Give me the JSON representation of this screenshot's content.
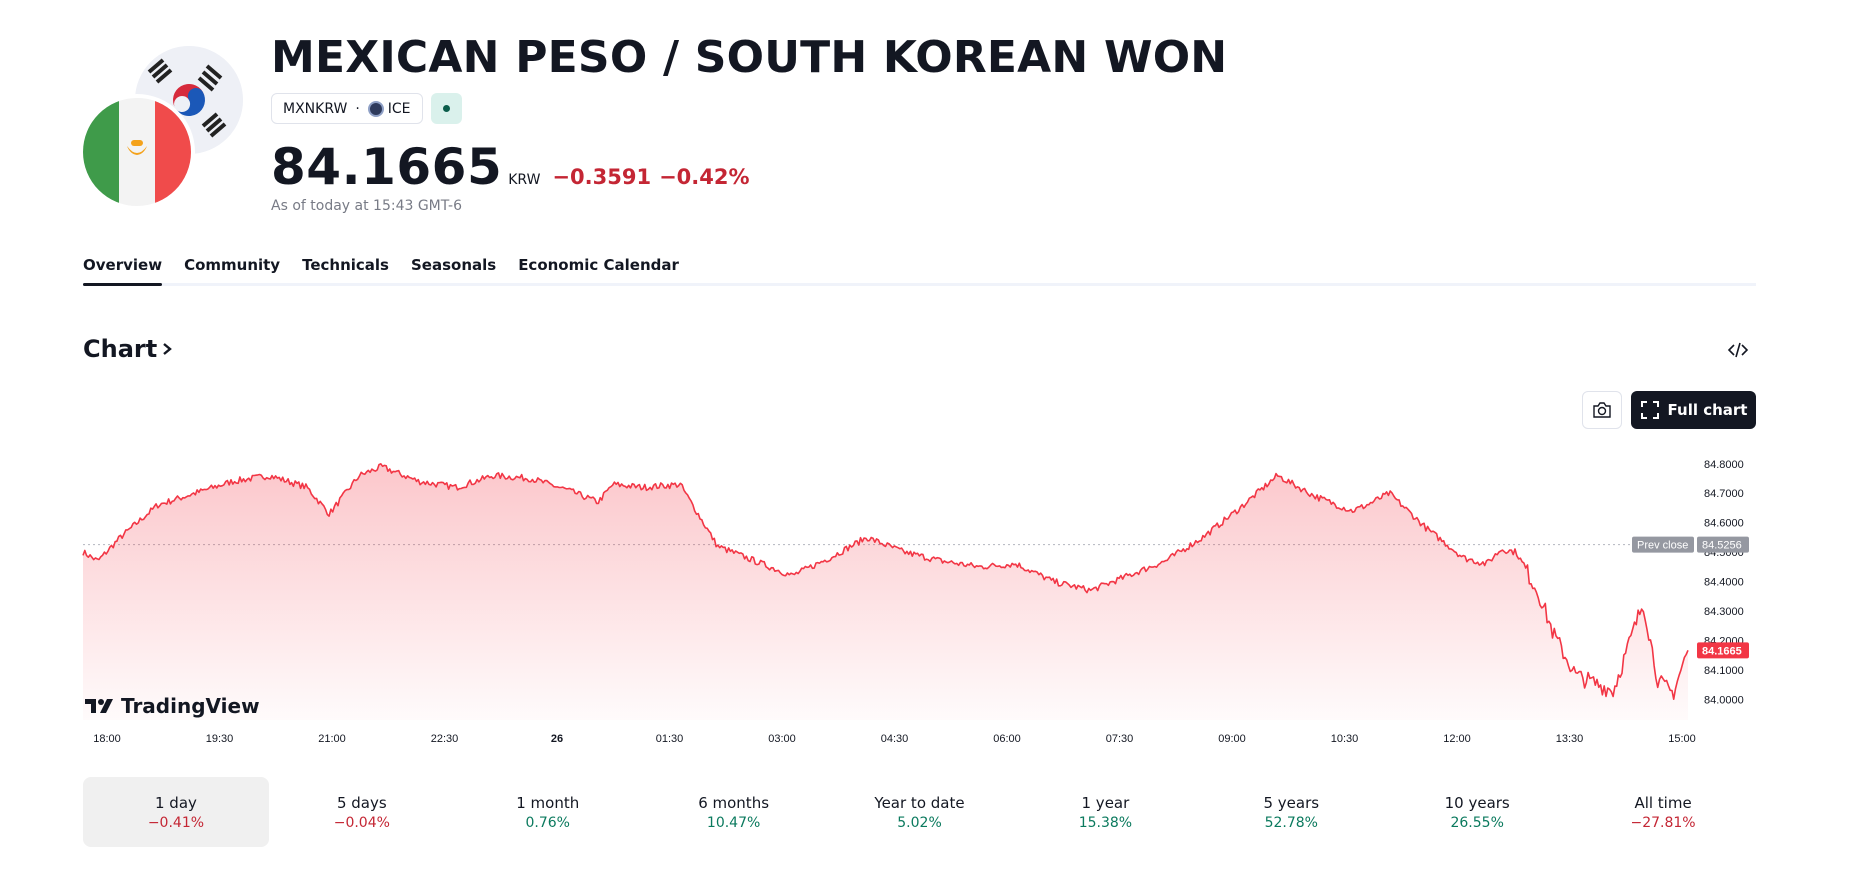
{
  "header": {
    "title": "MEXICAN PESO / SOUTH KOREAN WON",
    "symbol": "MXNKRW",
    "separator": "·",
    "exchange": "ICE",
    "price": "84.1665",
    "currency": "KRW",
    "change": "−0.3591",
    "change_pct": "−0.42%",
    "as_of": "As of today at 15:43 GMT-6"
  },
  "tabs": [
    "Overview",
    "Community",
    "Technicals",
    "Seasonals",
    "Economic Calendar"
  ],
  "chart_section": {
    "title": "Chart",
    "full_chart_label": "Full chart",
    "brand": "TradingView"
  },
  "colors": {
    "accent_red": "#f23645",
    "text_negative": "#c42634",
    "text_positive": "#0b7a5e",
    "dark": "#131722"
  },
  "chart_data": {
    "type": "area",
    "title": "",
    "xlabel": "",
    "ylabel": "",
    "x_ticks": [
      "18:00",
      "19:30",
      "21:00",
      "22:30",
      "26",
      "01:30",
      "03:00",
      "04:30",
      "06:00",
      "07:30",
      "09:00",
      "10:30",
      "12:00",
      "13:30",
      "15:00"
    ],
    "y_ticks": [
      "84.8000",
      "84.7000",
      "84.6000",
      "84.5000",
      "84.4000",
      "84.3000",
      "84.2000",
      "84.1000",
      "84.0000"
    ],
    "ylim": [
      83.93,
      84.84
    ],
    "x_hours": [
      0,
      0.2,
      0.5,
      1.0,
      1.5,
      2.0,
      2.5,
      3.0,
      3.3,
      3.7,
      4.0,
      4.5,
      5.0,
      5.5,
      6.0,
      6.5,
      6.9,
      7.1,
      7.5,
      8.0,
      8.5,
      9.0,
      9.5,
      10.0,
      10.5,
      11.0,
      11.5,
      12.0,
      12.5,
      13.0,
      13.5,
      14.0,
      14.5,
      15.0,
      15.5,
      16.0,
      16.5,
      17.0,
      17.2,
      17.5,
      18.0,
      18.5,
      18.8,
      19.0,
      19.2,
      19.5,
      19.7,
      20.0,
      20.5,
      20.9,
      21.1,
      21.3,
      21.5
    ],
    "values": [
      84.5,
      84.47,
      84.55,
      84.66,
      84.7,
      84.74,
      84.76,
      84.72,
      84.63,
      84.76,
      84.79,
      84.74,
      84.72,
      84.76,
      84.75,
      84.71,
      84.67,
      84.73,
      84.72,
      84.73,
      84.52,
      84.47,
      84.42,
      84.48,
      84.55,
      84.5,
      84.47,
      84.45,
      84.46,
      84.4,
      84.37,
      84.42,
      84.47,
      84.55,
      84.65,
      84.76,
      84.69,
      84.64,
      84.66,
      84.7,
      84.58,
      84.48,
      84.46,
      84.51,
      84.5,
      84.36,
      84.22,
      84.08,
      84.03,
      84.33,
      84.06,
      84.02,
      84.17
    ],
    "prev_close": 84.5256,
    "last": 84.1665,
    "labels": {
      "prev_close": "Prev close",
      "prev_close_value": "84.5256",
      "last_value": "84.1665"
    }
  },
  "periods": [
    {
      "label": "1 day",
      "value": "−0.41%",
      "dir": "neg"
    },
    {
      "label": "5 days",
      "value": "−0.04%",
      "dir": "neg"
    },
    {
      "label": "1 month",
      "value": "0.76%",
      "dir": "pos"
    },
    {
      "label": "6 months",
      "value": "10.47%",
      "dir": "pos"
    },
    {
      "label": "Year to date",
      "value": "5.02%",
      "dir": "pos"
    },
    {
      "label": "1 year",
      "value": "15.38%",
      "dir": "pos"
    },
    {
      "label": "5 years",
      "value": "52.78%",
      "dir": "pos"
    },
    {
      "label": "10 years",
      "value": "26.55%",
      "dir": "pos"
    },
    {
      "label": "All time",
      "value": "−27.81%",
      "dir": "neg"
    }
  ]
}
